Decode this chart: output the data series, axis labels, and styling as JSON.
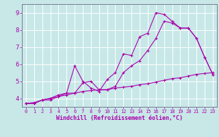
{
  "xlabel": "Windchill (Refroidissement éolien,°C)",
  "xlim": [
    -0.5,
    23.5
  ],
  "ylim": [
    3.5,
    9.5
  ],
  "yticks": [
    4,
    5,
    6,
    7,
    8,
    9
  ],
  "xticks": [
    0,
    1,
    2,
    3,
    4,
    5,
    6,
    7,
    8,
    9,
    10,
    11,
    12,
    13,
    14,
    15,
    16,
    17,
    18,
    19,
    20,
    21,
    22,
    23
  ],
  "bg_color": "#c8e8e8",
  "line_color": "#aa00aa",
  "grid_color": "#ffffff",
  "line1_x": [
    0,
    1,
    2,
    3,
    4,
    5,
    6,
    7,
    8,
    9,
    10,
    11,
    12,
    13,
    14,
    15,
    16,
    17,
    18,
    19,
    20,
    21,
    22,
    23
  ],
  "line1_y": [
    3.7,
    3.7,
    3.9,
    3.9,
    4.1,
    4.3,
    5.9,
    5.0,
    4.6,
    4.4,
    5.1,
    5.5,
    6.6,
    6.5,
    7.6,
    7.8,
    9.0,
    8.9,
    8.5,
    8.1,
    8.1,
    7.5,
    6.4,
    5.4
  ],
  "line2_x": [
    0,
    1,
    2,
    3,
    4,
    5,
    6,
    7,
    8,
    9,
    10,
    11,
    12,
    13,
    14,
    15,
    16,
    17,
    18,
    19,
    20,
    21,
    22,
    23
  ],
  "line2_y": [
    3.7,
    3.7,
    3.9,
    4.0,
    4.2,
    4.3,
    4.3,
    4.9,
    5.0,
    4.5,
    4.5,
    4.7,
    5.5,
    5.9,
    6.2,
    6.8,
    7.5,
    8.5,
    8.4,
    8.1,
    8.1,
    7.5,
    6.4,
    5.4
  ],
  "line3_x": [
    0,
    1,
    2,
    3,
    4,
    5,
    6,
    7,
    8,
    9,
    10,
    11,
    12,
    13,
    14,
    15,
    16,
    17,
    18,
    19,
    20,
    21,
    22,
    23
  ],
  "line3_y": [
    3.7,
    3.75,
    3.9,
    4.0,
    4.1,
    4.2,
    4.3,
    4.4,
    4.45,
    4.5,
    4.5,
    4.6,
    4.65,
    4.7,
    4.8,
    4.85,
    4.95,
    5.05,
    5.15,
    5.2,
    5.3,
    5.4,
    5.45,
    5.5
  ]
}
